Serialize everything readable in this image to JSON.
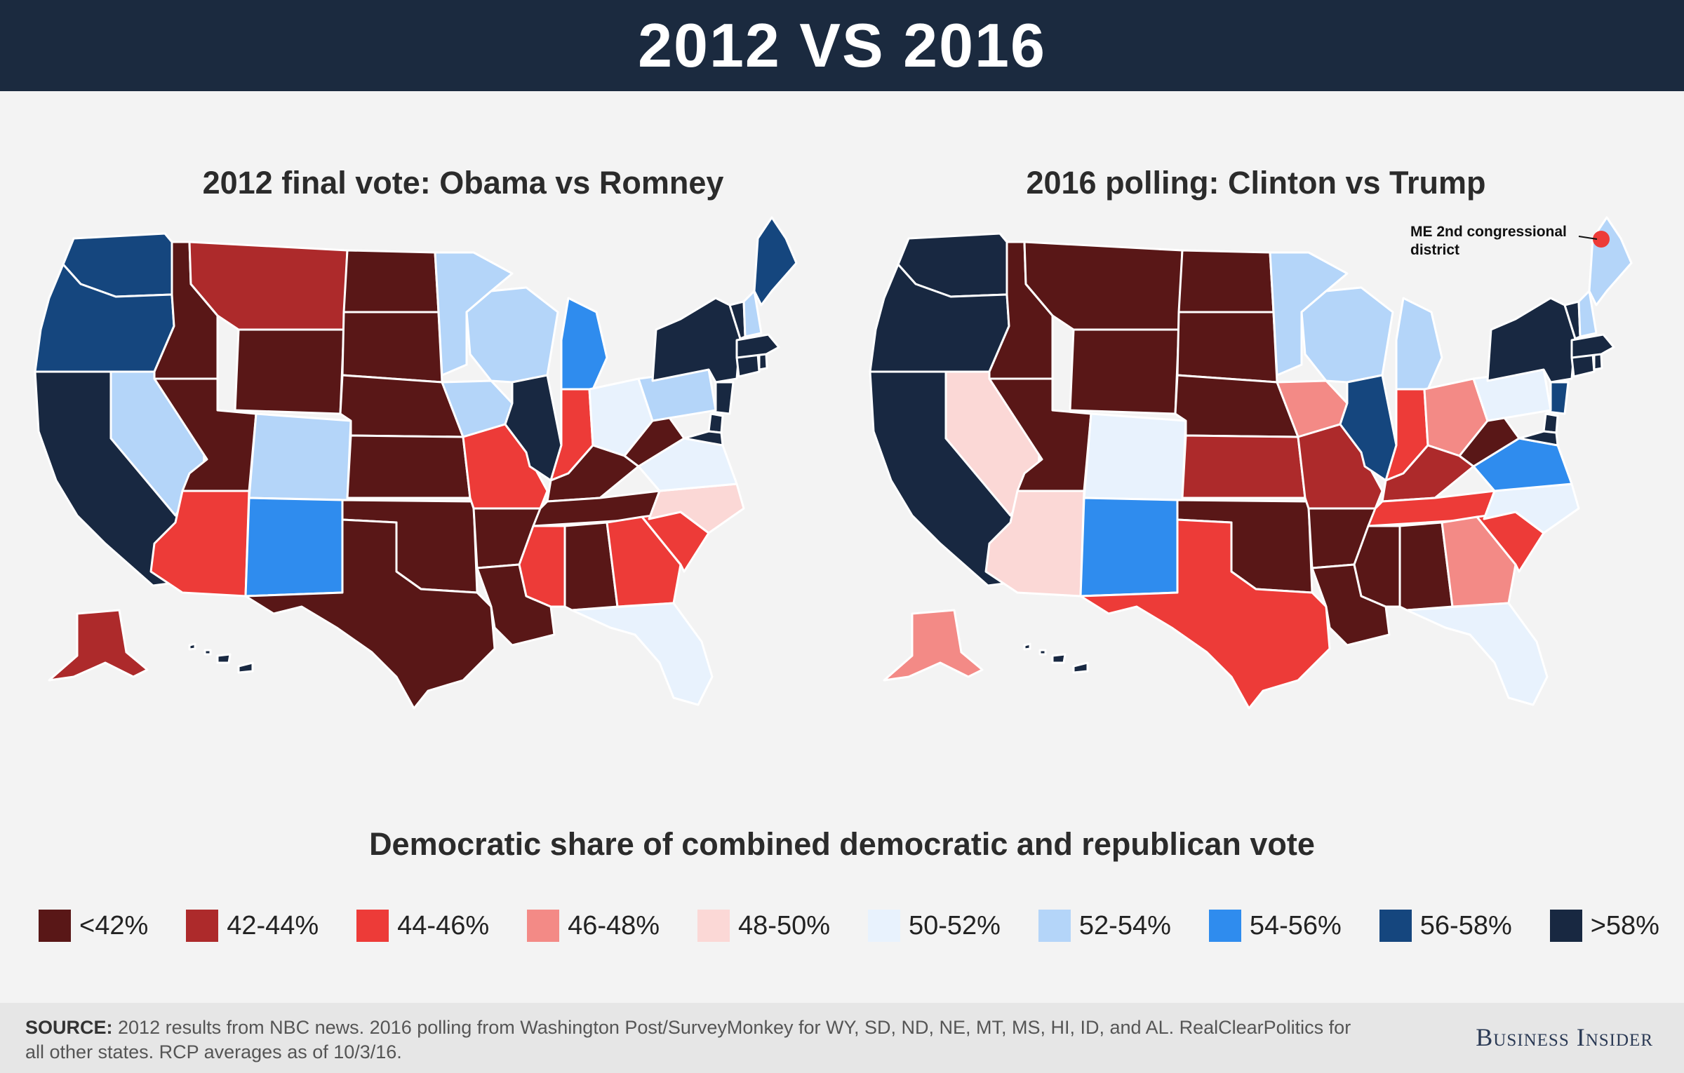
{
  "header": {
    "title": "2012 VS 2016"
  },
  "maps": [
    {
      "title": "2012 final vote: Obama vs Romney",
      "states": {
        "WA": "56-58%",
        "OR": "56-58%",
        "CA": ">58%",
        "NV": "52-54%",
        "ID": "<42%",
        "MT": "42-44%",
        "WY": "<42%",
        "UT": "<42%",
        "AZ": "44-46%",
        "CO": "52-54%",
        "NM": "54-56%",
        "ND": "<42%",
        "SD": "<42%",
        "NE": "<42%",
        "KS": "<42%",
        "OK": "<42%",
        "TX": "<42%",
        "MN": "52-54%",
        "IA": "52-54%",
        "MO": "44-46%",
        "AR": "<42%",
        "LA": "<42%",
        "WI": "52-54%",
        "IL": ">58%",
        "MI": "54-56%",
        "IN": "44-46%",
        "OH": "50-52%",
        "KY": "<42%",
        "TN": "<42%",
        "MS": "44-46%",
        "AL": "<42%",
        "GA": "44-46%",
        "FL": "50-52%",
        "SC": "44-46%",
        "NC": "48-50%",
        "VA": "50-52%",
        "WV": "<42%",
        "PA": "52-54%",
        "NY": ">58%",
        "NJ": ">58%",
        "DE": ">58%",
        "MD": ">58%",
        "CT": ">58%",
        "RI": ">58%",
        "MA": ">58%",
        "VT": ">58%",
        "NH": "52-54%",
        "ME": "56-58%",
        "AK": "42-44%",
        "HI": ">58%"
      }
    },
    {
      "title": "2016 polling: Clinton vs Trump",
      "annotation": "ME 2nd congressional district",
      "states": {
        "WA": ">58%",
        "OR": ">58%",
        "CA": ">58%",
        "NV": "48-50%",
        "ID": "<42%",
        "MT": "<42%",
        "WY": "<42%",
        "UT": "<42%",
        "AZ": "48-50%",
        "CO": "50-52%",
        "NM": "54-56%",
        "ND": "<42%",
        "SD": "<42%",
        "NE": "<42%",
        "KS": "42-44%",
        "OK": "<42%",
        "TX": "44-46%",
        "MN": "52-54%",
        "IA": "46-48%",
        "MO": "42-44%",
        "AR": "<42%",
        "LA": "<42%",
        "WI": "52-54%",
        "IL": "56-58%",
        "MI": "52-54%",
        "IN": "44-46%",
        "OH": "46-48%",
        "KY": "42-44%",
        "TN": "44-46%",
        "MS": "<42%",
        "AL": "<42%",
        "GA": "46-48%",
        "FL": "50-52%",
        "SC": "44-46%",
        "NC": "50-52%",
        "VA": "54-56%",
        "WV": "<42%",
        "PA": "50-52%",
        "NY": ">58%",
        "NJ": "56-58%",
        "DE": ">58%",
        "MD": ">58%",
        "CT": ">58%",
        "RI": ">58%",
        "MA": ">58%",
        "VT": ">58%",
        "NH": "52-54%",
        "ME": "52-54%",
        "AK": "46-48%",
        "HI": ">58%"
      }
    }
  ],
  "legend": {
    "title": "Democratic share of combined democratic and republican vote",
    "bins": [
      {
        "label": "<42%",
        "color": "#591717"
      },
      {
        "label": "42-44%",
        "color": "#ad2a2b"
      },
      {
        "label": "44-46%",
        "color": "#ed3b38"
      },
      {
        "label": "46-48%",
        "color": "#f38a86"
      },
      {
        "label": "48-50%",
        "color": "#fbd8d6"
      },
      {
        "label": "50-52%",
        "color": "#e8f2fd"
      },
      {
        "label": "52-54%",
        "color": "#b4d5f9"
      },
      {
        "label": "54-56%",
        "color": "#2f8cee"
      },
      {
        "label": "56-58%",
        "color": "#15467e"
      },
      {
        "label": ">58%",
        "color": "#182841"
      }
    ]
  },
  "footer": {
    "source_label": "SOURCE:",
    "source_text": " 2012 results from NBC news. 2016 polling from Washington Post/SurveyMonkey for WY, SD, ND, NE, MT, MS, HI, ID, and AL. RealClearPolitics for all other states. RCP averages as of 10/3/16.",
    "brand": "Business Insider"
  }
}
